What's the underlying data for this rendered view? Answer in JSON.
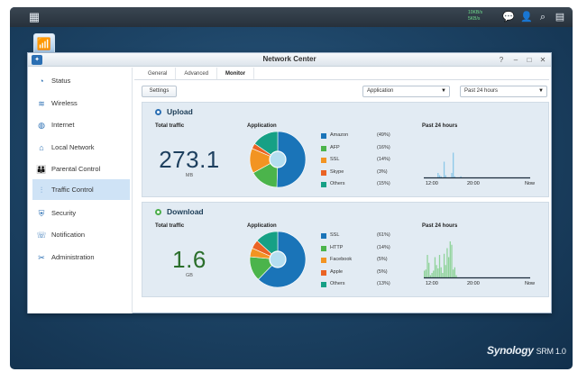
{
  "taskbar": {
    "main_menu_icon": "grid-icon",
    "speed_up": "10KB/s",
    "speed_down": "5KB/s",
    "icons": [
      "chat-icon",
      "user-icon",
      "search-icon",
      "widgets-icon"
    ]
  },
  "window": {
    "title": "Network Center",
    "controls": [
      "?",
      "–",
      "□",
      "✕"
    ]
  },
  "sidebar": {
    "items": [
      {
        "label": "Status",
        "icon": "status-icon"
      },
      {
        "label": "Wireless",
        "icon": "wifi-icon"
      },
      {
        "label": "Internet",
        "icon": "globe-icon"
      },
      {
        "label": "Local Network",
        "icon": "home-icon"
      },
      {
        "label": "Parental Control",
        "icon": "family-icon"
      },
      {
        "label": "Traffic Control",
        "icon": "sliders-icon"
      },
      {
        "label": "Security",
        "icon": "shield-icon"
      },
      {
        "label": "Notification",
        "icon": "notification-icon"
      },
      {
        "label": "Administration",
        "icon": "tools-icon"
      }
    ],
    "active_index": 5
  },
  "tabs": [
    "General",
    "Advanced",
    "Monitor"
  ],
  "active_tab": 2,
  "toolbar": {
    "settings_label": "Settings",
    "application_select": "Application",
    "period_select": "Past 24 hours"
  },
  "colors": {
    "accent": "#1a74b8",
    "upload_dot": "#2b6fb3",
    "download_dot": "#4cae4c"
  },
  "upload": {
    "heading": "Upload",
    "total_label": "Total traffic",
    "total_value": "273.1",
    "unit": "MB",
    "value_color": "#1d3f5e",
    "app_label": "Application",
    "past_label": "Past 24 hours",
    "ticks": [
      "12:00",
      "20:00",
      "Now"
    ],
    "legend": [
      {
        "name": "Amazon",
        "pct": "(49%)",
        "color": "#1a74b8"
      },
      {
        "name": "AFP",
        "pct": "(16%)",
        "color": "#4bb44b"
      },
      {
        "name": "SSL",
        "pct": "(14%)",
        "color": "#f29422"
      },
      {
        "name": "Skype",
        "pct": "(3%)",
        "color": "#ea6324"
      },
      {
        "name": "Others",
        "pct": "(15%)",
        "color": "#16a085"
      }
    ],
    "bars_color": "#8cc7e8",
    "bars": [
      0,
      0,
      0,
      0,
      0,
      0,
      0,
      0,
      0,
      4,
      2,
      1,
      0,
      14,
      2,
      0,
      0,
      0,
      4,
      22,
      1,
      0,
      0,
      0,
      1,
      0,
      0,
      0,
      0,
      0,
      0,
      0,
      0,
      0,
      0,
      0,
      0,
      0,
      0,
      0,
      0,
      0,
      0,
      0,
      0,
      0,
      0,
      0,
      0,
      0,
      0,
      0,
      0,
      0,
      0,
      0,
      0,
      0,
      0,
      0,
      0,
      0,
      0,
      0,
      0,
      0,
      0,
      0,
      0,
      0
    ]
  },
  "download": {
    "heading": "Download",
    "total_label": "Total traffic",
    "total_value": "1.6",
    "unit": "GB",
    "value_color": "#2a6e2a",
    "app_label": "Application",
    "past_label": "Past 24 hours",
    "ticks": [
      "12:00",
      "20:00",
      "Now"
    ],
    "legend": [
      {
        "name": "SSL",
        "pct": "(61%)",
        "color": "#1a74b8"
      },
      {
        "name": "HTTP",
        "pct": "(14%)",
        "color": "#4bb44b"
      },
      {
        "name": "Facebook",
        "pct": "(5%)",
        "color": "#f29422"
      },
      {
        "name": "Apple",
        "pct": "(5%)",
        "color": "#ea6324"
      },
      {
        "name": "Others",
        "pct": "(13%)",
        "color": "#16a085"
      }
    ],
    "bars_color": "#8fd39a",
    "bars": [
      6,
      7,
      20,
      13,
      2,
      4,
      6,
      18,
      11,
      8,
      20,
      9,
      4,
      21,
      11,
      26,
      18,
      32,
      29,
      7,
      9,
      2,
      0,
      0,
      0,
      0,
      0,
      0,
      0,
      0,
      0,
      0,
      0,
      0,
      0,
      0,
      0,
      0,
      0,
      0,
      0,
      0,
      0,
      0,
      0,
      0,
      0,
      0,
      0,
      0,
      0,
      0,
      0,
      0,
      0,
      0,
      0,
      0,
      0,
      0,
      0,
      0,
      0,
      0,
      0,
      0,
      0,
      0,
      0,
      0
    ]
  },
  "brand": {
    "name": "Synology",
    "product": "SRM 1.0"
  }
}
